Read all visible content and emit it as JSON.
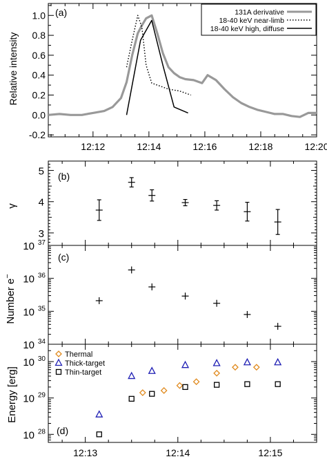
{
  "chart_data": [
    {
      "type": "line",
      "panel_label": "(a)",
      "ylabel": "Relative intensity",
      "xlim": [
        10.4,
        20.0
      ],
      "ylim": [
        -0.22,
        1.12
      ],
      "xticks": [
        12,
        14,
        16,
        18,
        20
      ],
      "xticklabels": [
        "12:12",
        "12:14",
        "12:16",
        "12:18",
        "12:20"
      ],
      "yticks": [
        -0.2,
        0.0,
        0.2,
        0.4,
        0.6,
        0.8,
        1.0
      ],
      "yticklabels": [
        "-0.2",
        "0.0",
        "0.2",
        "0.4",
        "0.6",
        "0.8",
        "1.0"
      ],
      "legend_placement": "top-right",
      "series": [
        {
          "name": "131A derivative",
          "style": "solid",
          "color": "#999999",
          "x": [
            10.4,
            10.8,
            11.2,
            11.6,
            12.0,
            12.4,
            12.7,
            13.0,
            13.2,
            13.4,
            13.6,
            13.75,
            13.9,
            14.1,
            14.3,
            14.5,
            14.7,
            14.9,
            15.1,
            15.3,
            15.6,
            15.9,
            16.1,
            16.4,
            16.7,
            17.0,
            17.3,
            17.6,
            17.9,
            18.2,
            18.5,
            18.8,
            19.1,
            19.4,
            19.7,
            20.0
          ],
          "y": [
            0.0,
            0.01,
            0.0,
            0.0,
            0.02,
            0.04,
            0.08,
            0.17,
            0.33,
            0.6,
            0.82,
            0.9,
            0.97,
            1.0,
            0.82,
            0.62,
            0.48,
            0.42,
            0.38,
            0.36,
            0.35,
            0.32,
            0.4,
            0.35,
            0.26,
            0.18,
            0.12,
            0.08,
            0.05,
            0.03,
            0.01,
            0.01,
            -0.01,
            -0.02,
            0.02,
            0.02
          ]
        },
        {
          "name": "18-40 keV near-limb",
          "style": "dotted",
          "color": "#000000",
          "x": [
            13.2,
            13.4,
            13.6,
            13.75,
            13.9,
            14.1,
            14.3,
            14.5,
            14.7,
            14.9,
            15.1,
            15.3,
            15.5
          ],
          "y": [
            0.48,
            0.75,
            1.0,
            0.88,
            0.5,
            0.32,
            0.3,
            0.28,
            0.26,
            0.25,
            0.24,
            0.22,
            0.2
          ]
        },
        {
          "name": "18-40 keV high, diffuse",
          "style": "solid",
          "color": "#000000",
          "x": [
            13.2,
            13.7,
            14.1,
            14.5,
            14.9,
            15.4
          ],
          "y": [
            0.0,
            0.75,
            0.95,
            0.5,
            0.08,
            0.02
          ]
        }
      ]
    },
    {
      "type": "scatter",
      "panel_label": "(b)",
      "ylabel": "γ",
      "xlim": [
        12.6,
        15.5
      ],
      "ylim": [
        2.6,
        5.3
      ],
      "yticks": [
        3,
        4,
        5
      ],
      "yticklabels": [
        "3",
        "4",
        "5"
      ],
      "marker": "errorbar",
      "points": [
        {
          "x": 13.15,
          "y": 3.73,
          "err": 0.33
        },
        {
          "x": 13.5,
          "y": 4.62,
          "err": 0.15
        },
        {
          "x": 13.72,
          "y": 4.2,
          "err": 0.18
        },
        {
          "x": 14.08,
          "y": 3.97,
          "err": 0.1
        },
        {
          "x": 14.42,
          "y": 3.88,
          "err": 0.15
        },
        {
          "x": 14.75,
          "y": 3.68,
          "err": 0.3
        },
        {
          "x": 15.08,
          "y": 3.35,
          "err": 0.4
        }
      ]
    },
    {
      "type": "scatter",
      "panel_label": "(c)",
      "ylabel": "Number e",
      "ylabel_sup": "−",
      "yscale": "log",
      "xlim": [
        12.6,
        15.5
      ],
      "ylim": [
        1e+34,
        1e+37
      ],
      "ytick_exponents": [
        34,
        35,
        36,
        37
      ],
      "marker": "plus",
      "points": [
        {
          "x": 13.15,
          "y": 2.1e+35
        },
        {
          "x": 13.5,
          "y": 1.8e+36
        },
        {
          "x": 13.72,
          "y": 5.5e+35
        },
        {
          "x": 14.08,
          "y": 2.9e+35
        },
        {
          "x": 14.42,
          "y": 1.75e+35
        },
        {
          "x": 14.75,
          "y": 8e+34
        },
        {
          "x": 15.08,
          "y": 3.5e+34
        }
      ]
    },
    {
      "type": "scatter",
      "panel_label": "(d)",
      "ylabel": "Energy [erg]",
      "yscale": "log",
      "xlim": [
        12.6,
        15.5
      ],
      "ylim": [
        6e+27,
        3e+30
      ],
      "ytick_exponents": [
        28,
        29,
        30
      ],
      "xticks": [
        13,
        14,
        15
      ],
      "xticklabels": [
        "12:13",
        "12:14",
        "12:15"
      ],
      "legend_placement": "top-left",
      "series": [
        {
          "name": "Thermal",
          "marker": "diamond",
          "color": "#e08a1e",
          "x": [
            13.62,
            13.85,
            14.02,
            14.2,
            14.42,
            14.62,
            14.85
          ],
          "y": [
            1.4e+29,
            1.6e+29,
            2.2e+29,
            2.8e+29,
            4.8e+29,
            7e+29,
            7e+29
          ]
        },
        {
          "name": "Thick-target",
          "marker": "triangle",
          "color": "#1f1fb4",
          "x": [
            13.15,
            13.5,
            13.72,
            14.08,
            14.42,
            14.75,
            15.08
          ],
          "y": [
            3.5e+28,
            4e+29,
            5.5e+29,
            8e+29,
            9e+29,
            9.5e+29,
            9.5e+29
          ]
        },
        {
          "name": "Thin-target",
          "marker": "square",
          "color": "#000000",
          "x": [
            13.15,
            13.5,
            13.72,
            14.08,
            14.42,
            14.75,
            15.08
          ],
          "y": [
            1e+28,
            9.5e+28,
            1.3e+29,
            2e+29,
            2.3e+29,
            2.4e+29,
            2.4e+29
          ]
        }
      ]
    }
  ]
}
